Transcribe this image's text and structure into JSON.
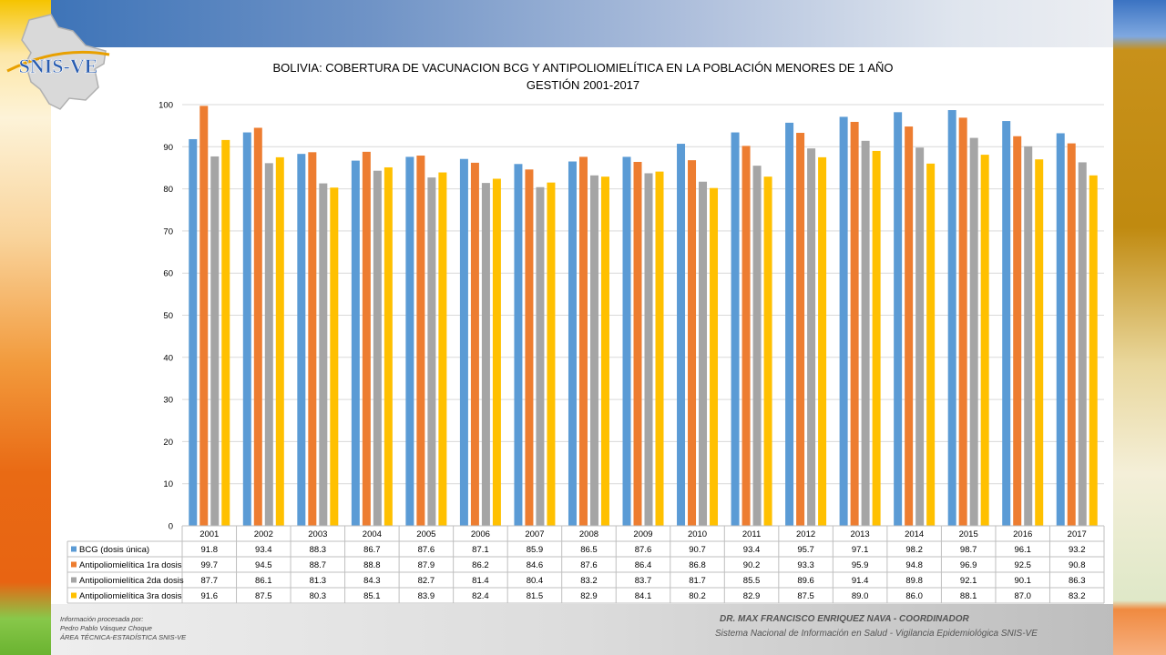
{
  "logo": {
    "text": "SNIS-VE",
    "icon": "bolivia-map-logo"
  },
  "chart_data": {
    "type": "bar",
    "title": "BOLIVIA: COBERTURA DE VACUNACION BCG Y ANTIPOLIOMIELÍTICA  EN LA POBLACIÓN MENORES DE 1 AÑO",
    "subtitle": "GESTIÓN 2001-2017",
    "categories": [
      "2001",
      "2002",
      "2003",
      "2004",
      "2005",
      "2006",
      "2007",
      "2008",
      "2009",
      "2010",
      "2011",
      "2012",
      "2013",
      "2014",
      "2015",
      "2016",
      "2017"
    ],
    "y_ticks": [
      "0",
      "10",
      "20",
      "30",
      "40",
      "50",
      "60",
      "70",
      "80",
      "90",
      "100"
    ],
    "ylim": [
      0,
      100
    ],
    "grid": true,
    "legend": "data-table",
    "series": [
      {
        "name": "BCG (dosis única)",
        "color": "#5b9bd5",
        "values": [
          91.8,
          93.4,
          88.3,
          86.7,
          87.6,
          87.1,
          85.9,
          86.5,
          87.6,
          90.7,
          93.4,
          95.7,
          97.1,
          98.2,
          98.7,
          96.1,
          93.2
        ],
        "labels": [
          "91.8",
          "93.4",
          "88.3",
          "86.7",
          "87.6",
          "87.1",
          "85.9",
          "86.5",
          "87.6",
          "90.7",
          "93.4",
          "95.7",
          "97.1",
          "98.2",
          "98.7",
          "96.1",
          "93.2"
        ]
      },
      {
        "name": "Antipoliomielítica 1ra dosis",
        "color": "#ed7d31",
        "values": [
          99.7,
          94.5,
          88.7,
          88.8,
          87.9,
          86.2,
          84.6,
          87.6,
          86.4,
          86.8,
          90.2,
          93.3,
          95.9,
          94.8,
          96.9,
          92.5,
          90.8
        ],
        "labels": [
          "99.7",
          "94.5",
          "88.7",
          "88.8",
          "87.9",
          "86.2",
          "84.6",
          "87.6",
          "86.4",
          "86.8",
          "90.2",
          "93.3",
          "95.9",
          "94.8",
          "96.9",
          "92.5",
          "90.8"
        ]
      },
      {
        "name": "Antipoliomielítica 2da dosis",
        "color": "#a5a5a5",
        "values": [
          87.7,
          86.1,
          81.3,
          84.3,
          82.7,
          81.4,
          80.4,
          83.2,
          83.7,
          81.7,
          85.5,
          89.6,
          91.4,
          89.8,
          92.1,
          90.1,
          86.3
        ],
        "labels": [
          "87.7",
          "86.1",
          "81.3",
          "84.3",
          "82.7",
          "81.4",
          "80.4",
          "83.2",
          "83.7",
          "81.7",
          "85.5",
          "89.6",
          "91.4",
          "89.8",
          "92.1",
          "90.1",
          "86.3"
        ]
      },
      {
        "name": "Antipoliomielítica 3ra dosis",
        "color": "#ffc000",
        "values": [
          91.6,
          87.5,
          80.3,
          85.1,
          83.9,
          82.4,
          81.5,
          82.9,
          84.1,
          80.2,
          82.9,
          87.5,
          89.0,
          86.0,
          88.1,
          87.0,
          83.2
        ],
        "labels": [
          "91.6",
          "87.5",
          "80.3",
          "85.1",
          "83.9",
          "82.4",
          "81.5",
          "82.9",
          "84.1",
          "80.2",
          "82.9",
          "87.5",
          "89.0",
          "86.0",
          "88.1",
          "87.0",
          "83.2"
        ]
      }
    ]
  },
  "footer": {
    "credit_line1": "Información procesada por:",
    "credit_line2": "Pedro Pablo Vásquez Choque",
    "credit_line3": "ÁREA TÉCNICA-ESTADÍSTICA  SNIS-VE",
    "coordinator": "DR. MAX FRANCISCO ENRIQUEZ NAVA - COORDINADOR",
    "organization": "Sistema Nacional de Información en Salud - Vigilancia Epidemiológica SNIS-VE"
  }
}
